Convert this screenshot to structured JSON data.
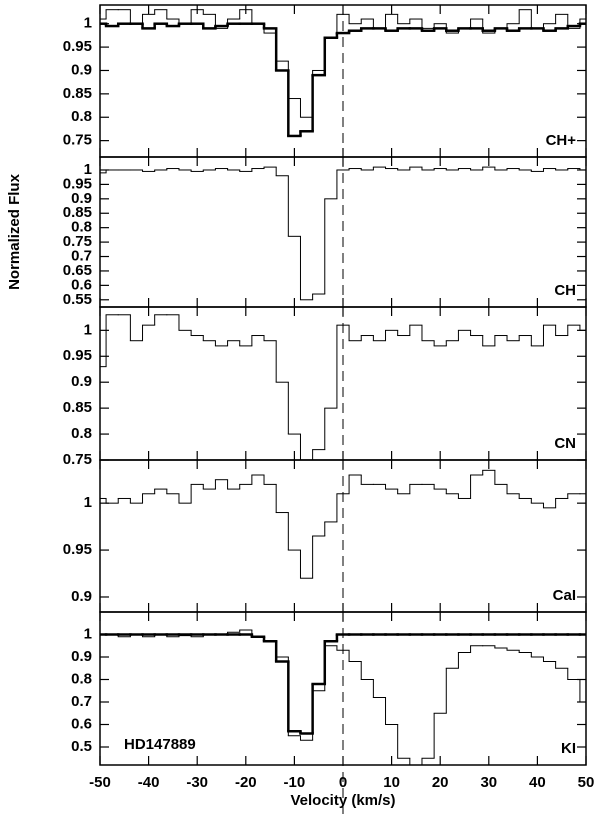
{
  "chart_data": [
    {
      "type": "line",
      "ylabel": "Normalized Flux",
      "label": "CH+",
      "xlim": [
        -50,
        50
      ],
      "xticks": [
        -50,
        -40,
        -30,
        -20,
        -10,
        0,
        10,
        20,
        30,
        40,
        50
      ],
      "vline": 0,
      "ylim": [
        0.715,
        1.04
      ],
      "yticks": [
        0.75,
        0.8,
        0.85,
        0.9,
        0.95,
        1
      ],
      "x": [
        -50,
        -47.5,
        -45,
        -42.5,
        -40,
        -37.5,
        -35,
        -32.5,
        -30,
        -27.5,
        -25,
        -22.5,
        -20,
        -17.5,
        -15,
        -12.5,
        -10,
        -7.5,
        -5,
        -2.5,
        0,
        2.5,
        5,
        7.5,
        10,
        12.5,
        15,
        17.5,
        20,
        22.5,
        25,
        27.5,
        30,
        32.5,
        35,
        37.5,
        40,
        42.5,
        45,
        47.5,
        50
      ],
      "series": [
        {
          "color": "#000000",
          "width": 1,
          "values": [
            1.01,
            1.03,
            1.03,
            1.0,
            1.02,
            1.03,
            1.01,
            1.0,
            1.03,
            1.02,
            0.99,
            1.01,
            1.03,
            1.0,
            0.98,
            0.92,
            0.84,
            0.8,
            0.9,
            0.97,
            1.02,
            1.0,
            1.01,
            0.99,
            1.02,
            1.0,
            1.01,
            0.99,
            1.0,
            0.98,
            0.99,
            1.01,
            0.98,
            0.99,
            1.0,
            1.03,
            0.99,
            1.0,
            1.02,
            0.99,
            1.01
          ]
        },
        {
          "color": "#000000",
          "width": 2.5,
          "values": [
            1.0,
            0.995,
            1.0,
            1.0,
            0.99,
            1.0,
            0.995,
            1.0,
            1.0,
            0.99,
            0.995,
            1.0,
            1.0,
            1.0,
            0.99,
            0.9,
            0.76,
            0.77,
            0.89,
            0.97,
            0.98,
            0.985,
            0.99,
            0.99,
            0.985,
            0.99,
            0.99,
            0.985,
            0.99,
            0.985,
            0.99,
            0.99,
            0.985,
            0.99,
            0.985,
            0.99,
            0.99,
            0.985,
            0.99,
            0.995,
            1.0
          ]
        }
      ]
    },
    {
      "type": "line",
      "label": "CH",
      "xlim": [
        -50,
        50
      ],
      "xticks": [
        -50,
        -40,
        -30,
        -20,
        -10,
        0,
        10,
        20,
        30,
        40,
        50
      ],
      "vline": 0,
      "ylim": [
        0.525,
        1.045
      ],
      "yticks": [
        0.55,
        0.6,
        0.65,
        0.7,
        0.75,
        0.8,
        0.85,
        0.9,
        0.95,
        1
      ],
      "x": [
        -50,
        -47.5,
        -45,
        -42.5,
        -40,
        -37.5,
        -35,
        -32.5,
        -30,
        -27.5,
        -25,
        -22.5,
        -20,
        -17.5,
        -15,
        -12.5,
        -10,
        -7.5,
        -5,
        -2.5,
        0,
        2.5,
        5,
        7.5,
        10,
        12.5,
        15,
        17.5,
        20,
        22.5,
        25,
        27.5,
        30,
        32.5,
        35,
        37.5,
        40,
        42.5,
        45,
        47.5,
        50
      ],
      "series": [
        {
          "color": "#000000",
          "width": 1,
          "values": [
            0.99,
            1.0,
            1.0,
            1.0,
            0.995,
            1.0,
            1.005,
            1.0,
            0.995,
            1.0,
            1.005,
            1.0,
            0.995,
            1.005,
            1.01,
            0.98,
            0.77,
            0.55,
            0.57,
            0.9,
            1.0,
            1.005,
            1.0,
            1.01,
            1.005,
            1.0,
            1.01,
            1.0,
            1.005,
            1.0,
            1.005,
            1.0,
            1.01,
            1.0,
            1.005,
            1.0,
            0.995,
            1.005,
            1.0,
            1.005,
            1.0
          ]
        }
      ]
    },
    {
      "type": "line",
      "label": "CN",
      "xlim": [
        -50,
        50
      ],
      "xticks": [
        -50,
        -40,
        -30,
        -20,
        -10,
        0,
        10,
        20,
        30,
        40,
        50
      ],
      "vline": 0,
      "ylim": [
        0.75,
        1.045
      ],
      "yticks": [
        0.75,
        0.8,
        0.85,
        0.9,
        0.95,
        1
      ],
      "x": [
        -50,
        -47.5,
        -45,
        -42.5,
        -40,
        -37.5,
        -35,
        -32.5,
        -30,
        -27.5,
        -25,
        -22.5,
        -20,
        -17.5,
        -15,
        -12.5,
        -10,
        -7.5,
        -5,
        -2.5,
        0,
        2.5,
        5,
        7.5,
        10,
        12.5,
        15,
        17.5,
        20,
        22.5,
        25,
        27.5,
        30,
        32.5,
        35,
        37.5,
        40,
        42.5,
        45,
        47.5,
        50
      ],
      "series": [
        {
          "color": "#000000",
          "width": 1,
          "values": [
            0.93,
            1.03,
            1.03,
            0.98,
            1.01,
            1.03,
            1.03,
            1.0,
            0.99,
            0.98,
            0.97,
            0.98,
            0.97,
            0.99,
            0.98,
            0.9,
            0.8,
            0.75,
            0.77,
            0.85,
            1.01,
            0.98,
            0.99,
            0.98,
            1.0,
            0.99,
            1.01,
            0.98,
            0.97,
            0.98,
            1.0,
            0.99,
            0.97,
            0.99,
            0.98,
            0.99,
            0.97,
            1.01,
            0.99,
            1.01,
            1.0
          ]
        }
      ]
    },
    {
      "type": "line",
      "label": "CaI",
      "xlim": [
        -50,
        50
      ],
      "xticks": [
        -50,
        -40,
        -30,
        -20,
        -10,
        0,
        10,
        20,
        30,
        40,
        50
      ],
      "vline": 0,
      "ylim": [
        0.884,
        1.046
      ],
      "yticks": [
        0.9,
        0.95,
        1
      ],
      "x": [
        -50,
        -47.5,
        -45,
        -42.5,
        -40,
        -37.5,
        -35,
        -32.5,
        -30,
        -27.5,
        -25,
        -22.5,
        -20,
        -17.5,
        -15,
        -12.5,
        -10,
        -7.5,
        -5,
        -2.5,
        0,
        2.5,
        5,
        7.5,
        10,
        12.5,
        15,
        17.5,
        20,
        22.5,
        25,
        27.5,
        30,
        32.5,
        35,
        37.5,
        40,
        42.5,
        45,
        47.5,
        50
      ],
      "series": [
        {
          "color": "#000000",
          "width": 1,
          "values": [
            1.005,
            1.0,
            1.005,
            1.0,
            1.01,
            1.015,
            1.01,
            1.0,
            1.02,
            1.015,
            1.025,
            1.015,
            1.02,
            1.03,
            1.02,
            0.99,
            0.95,
            0.92,
            0.965,
            0.98,
            1.01,
            1.03,
            1.02,
            1.02,
            1.015,
            1.01,
            1.02,
            1.02,
            1.015,
            1.01,
            1.005,
            1.03,
            1.035,
            1.02,
            1.01,
            1.005,
            1.0,
            0.995,
            1.005,
            1.01,
            1.01
          ]
        }
      ]
    },
    {
      "type": "line",
      "label": "KI",
      "annotation": "HD147889",
      "xlabel": "Velocity  (km/s)",
      "xlim": [
        -50,
        50
      ],
      "xticks": [
        -50,
        -40,
        -30,
        -20,
        -10,
        0,
        10,
        20,
        30,
        40,
        50
      ],
      "vline": 0,
      "ylim": [
        0.42,
        1.1
      ],
      "yticks": [
        0.5,
        0.6,
        0.7,
        0.8,
        0.9,
        1
      ],
      "x": [
        -50,
        -47.5,
        -45,
        -42.5,
        -40,
        -37.5,
        -35,
        -32.5,
        -30,
        -27.5,
        -25,
        -22.5,
        -20,
        -17.5,
        -15,
        -12.5,
        -10,
        -7.5,
        -5,
        -2.5,
        0,
        2.5,
        5,
        7.5,
        10,
        12.5,
        15,
        17.5,
        20,
        22.5,
        25,
        27.5,
        30,
        32.5,
        35,
        37.5,
        40,
        42.5,
        45,
        47.5,
        50
      ],
      "series": [
        {
          "color": "#000000",
          "width": 1,
          "values": [
            1.0,
            1.0,
            0.99,
            1.0,
            0.99,
            1.0,
            0.99,
            0.995,
            0.99,
            1.0,
            1.0,
            1.01,
            1.02,
            0.99,
            0.97,
            0.9,
            0.55,
            0.53,
            0.75,
            0.95,
            0.93,
            0.88,
            0.8,
            0.72,
            0.6,
            0.45,
            0.42,
            0.45,
            0.65,
            0.85,
            0.92,
            0.95,
            0.95,
            0.94,
            0.93,
            0.92,
            0.9,
            0.88,
            0.85,
            0.8,
            0.7
          ]
        },
        {
          "color": "#000000",
          "width": 2.5,
          "values": [
            1.0,
            1.0,
            1.0,
            1.0,
            1.0,
            1.0,
            1.0,
            1.0,
            1.0,
            1.0,
            1.0,
            1.0,
            1.0,
            0.99,
            0.97,
            0.88,
            0.57,
            0.56,
            0.78,
            0.97,
            1.0,
            1.0,
            1.0,
            1.0,
            1.0,
            1.0,
            1.0,
            1.0,
            1.0,
            1.0,
            1.0,
            1.0,
            1.0,
            1.0,
            1.0,
            1.0,
            1.0,
            1.0,
            1.0,
            1.0,
            1.0
          ]
        }
      ]
    }
  ]
}
